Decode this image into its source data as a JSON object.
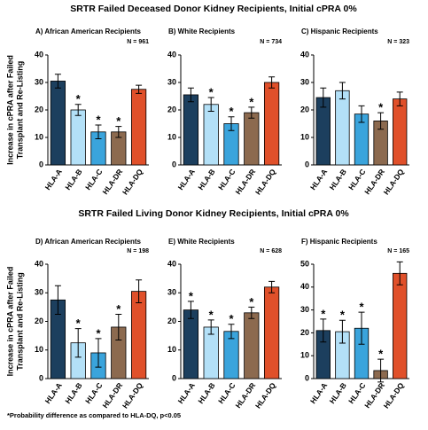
{
  "section_titles": [
    "SRTR Failed Deceased Donor Kidney Recipients, Initial cPRA 0%",
    "SRTR Failed Living Donor Kidney Recipients, Initial cPRA 0%"
  ],
  "footnote": "*Probability difference as compared to HLA-DQ, p<0.05",
  "chart_data": [
    {
      "type": "bar",
      "title": "A) African American Recipients",
      "n_label": "N = 961",
      "y_label": [
        "Increase in cPRA after Failed",
        "Transplant and Re-Listing"
      ],
      "categories": [
        "HLA-A",
        "HLA-B",
        "HLA-C",
        "HLA-DR",
        "HLA-DQ"
      ],
      "colors": [
        "#1c3f5e",
        "#b3e0f7",
        "#3aa4dc",
        "#8c6a4f",
        "#e0502a"
      ],
      "values": [
        30.5,
        20,
        12,
        12,
        27.5
      ],
      "errors": [
        2.5,
        2,
        2.5,
        2,
        1.5
      ],
      "stars": [
        null,
        "*",
        "*",
        "*",
        null
      ],
      "ylim": [
        0,
        40
      ],
      "yticks": [
        0,
        10,
        20,
        30,
        40
      ]
    },
    {
      "type": "bar",
      "title": "B) White Recipients",
      "n_label": "N = 734",
      "categories": [
        "HLA-A",
        "HLA-B",
        "HLA-C",
        "HLA-DR",
        "HLA-DQ"
      ],
      "colors": [
        "#1c3f5e",
        "#b3e0f7",
        "#3aa4dc",
        "#8c6a4f",
        "#e0502a"
      ],
      "values": [
        25.5,
        22,
        15,
        19,
        30
      ],
      "errors": [
        2.5,
        2.5,
        2.5,
        2,
        2
      ],
      "stars": [
        null,
        "*",
        "*",
        "*",
        null
      ],
      "ylim": [
        0,
        40
      ],
      "yticks": [
        0,
        10,
        20,
        30,
        40
      ]
    },
    {
      "type": "bar",
      "title": "C) Hispanic Recipients",
      "n_label": "N = 323",
      "categories": [
        "HLA-A",
        "HLA-B",
        "HLA-C",
        "HLA-DR",
        "HLA-DQ"
      ],
      "colors": [
        "#1c3f5e",
        "#b3e0f7",
        "#3aa4dc",
        "#8c6a4f",
        "#e0502a"
      ],
      "values": [
        24.5,
        27,
        18.5,
        16,
        24
      ],
      "errors": [
        3.5,
        3,
        3,
        3,
        2.5
      ],
      "stars": [
        null,
        null,
        null,
        "*",
        null
      ],
      "ylim": [
        0,
        40
      ],
      "yticks": [
        0,
        10,
        20,
        30,
        40
      ]
    },
    {
      "type": "bar",
      "title": "D) African American Recipients",
      "n_label": "N = 198",
      "y_label": [
        "Increase in cPRA after Failed",
        "Transplant and Re-Listing"
      ],
      "categories": [
        "HLA-A",
        "HLA-B",
        "HLA-C",
        "HLA-DR",
        "HLA-DQ"
      ],
      "colors": [
        "#1c3f5e",
        "#b3e0f7",
        "#3aa4dc",
        "#8c6a4f",
        "#e0502a"
      ],
      "values": [
        27.5,
        12.5,
        9,
        18,
        30.5
      ],
      "errors": [
        5,
        5,
        5,
        4.5,
        4
      ],
      "stars": [
        null,
        "*",
        "*",
        "*",
        null
      ],
      "ylim": [
        0,
        40
      ],
      "yticks": [
        0,
        10,
        20,
        30,
        40
      ]
    },
    {
      "type": "bar",
      "title": "E) White Recipients",
      "n_label": "N = 628",
      "categories": [
        "HLA-A",
        "HLA-B",
        "HLA-C",
        "HLA-DR",
        "HLA-DQ"
      ],
      "colors": [
        "#1c3f5e",
        "#b3e0f7",
        "#3aa4dc",
        "#8c6a4f",
        "#e0502a"
      ],
      "values": [
        24,
        18,
        16.5,
        23,
        32
      ],
      "errors": [
        3,
        2.5,
        2.5,
        2,
        2
      ],
      "stars": [
        "*",
        "*",
        "*",
        "*",
        null
      ],
      "ylim": [
        0,
        40
      ],
      "yticks": [
        0,
        10,
        20,
        30,
        40
      ]
    },
    {
      "type": "bar",
      "title": "F) Hispanic Recipients",
      "n_label": "N = 165",
      "categories": [
        "HLA-A",
        "HLA-B",
        "HLA-C",
        "HLA-DR",
        "HLA-DQ"
      ],
      "colors": [
        "#1c3f5e",
        "#b3e0f7",
        "#3aa4dc",
        "#8c6a4f",
        "#e0502a"
      ],
      "values": [
        21,
        20.5,
        22,
        3.5,
        46
      ],
      "errors": [
        5,
        5,
        7,
        5,
        5
      ],
      "stars": [
        "*",
        "*",
        "*",
        "*",
        null
      ],
      "ylim": [
        0,
        50
      ],
      "yticks": [
        0,
        10,
        20,
        30,
        40,
        50
      ]
    }
  ]
}
